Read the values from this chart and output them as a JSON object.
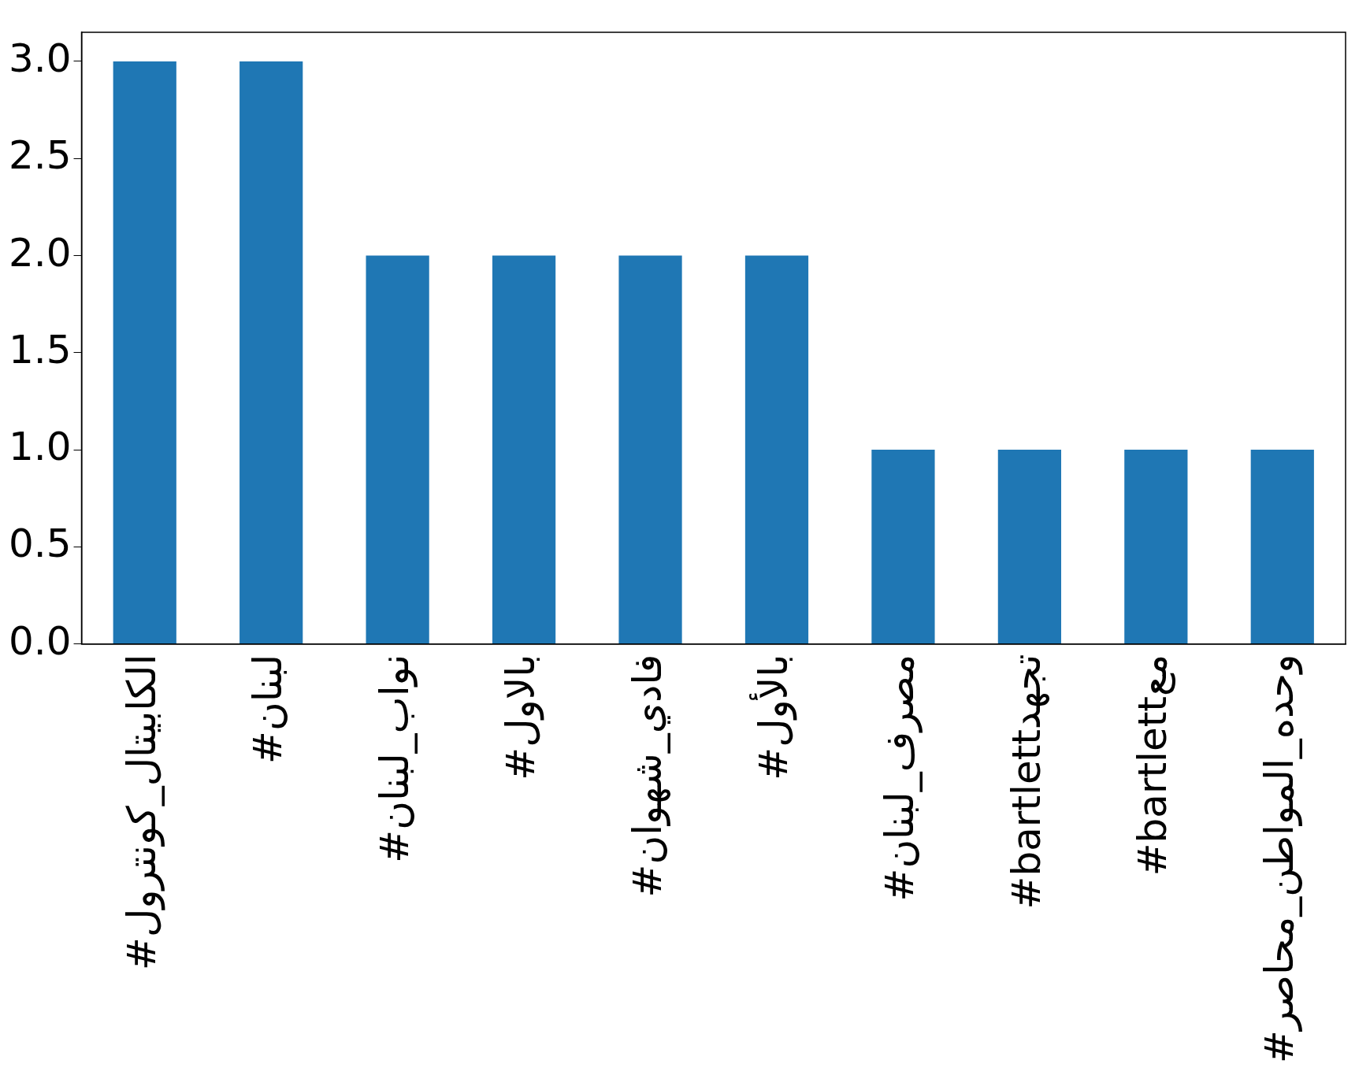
{
  "chart_data": {
    "type": "bar",
    "categories": [
      "#الكابيتال_كونترول",
      "#لبنان",
      "#نواب_لبنان",
      "#بالاول",
      "#فادي_شهوان",
      "#بالأول",
      "#مصرف_لبنان",
      "#bartlettتجهد",
      "#bartlettمع",
      "#وحده_المواطن_محاصر"
    ],
    "values": [
      3,
      3,
      2,
      2,
      2,
      2,
      1,
      1,
      1,
      1
    ],
    "color": "#1f77b4",
    "ylim": [
      0,
      3.15
    ],
    "yticks": [
      {
        "value": 0,
        "label": "0.0"
      },
      0.5,
      {
        "value": 1,
        "label": "1.0"
      },
      1.5,
      {
        "value": 2,
        "label": "2.0"
      },
      2.5,
      {
        "value": 3,
        "label": "3.0"
      }
    ],
    "grid": false,
    "legend": false
  }
}
